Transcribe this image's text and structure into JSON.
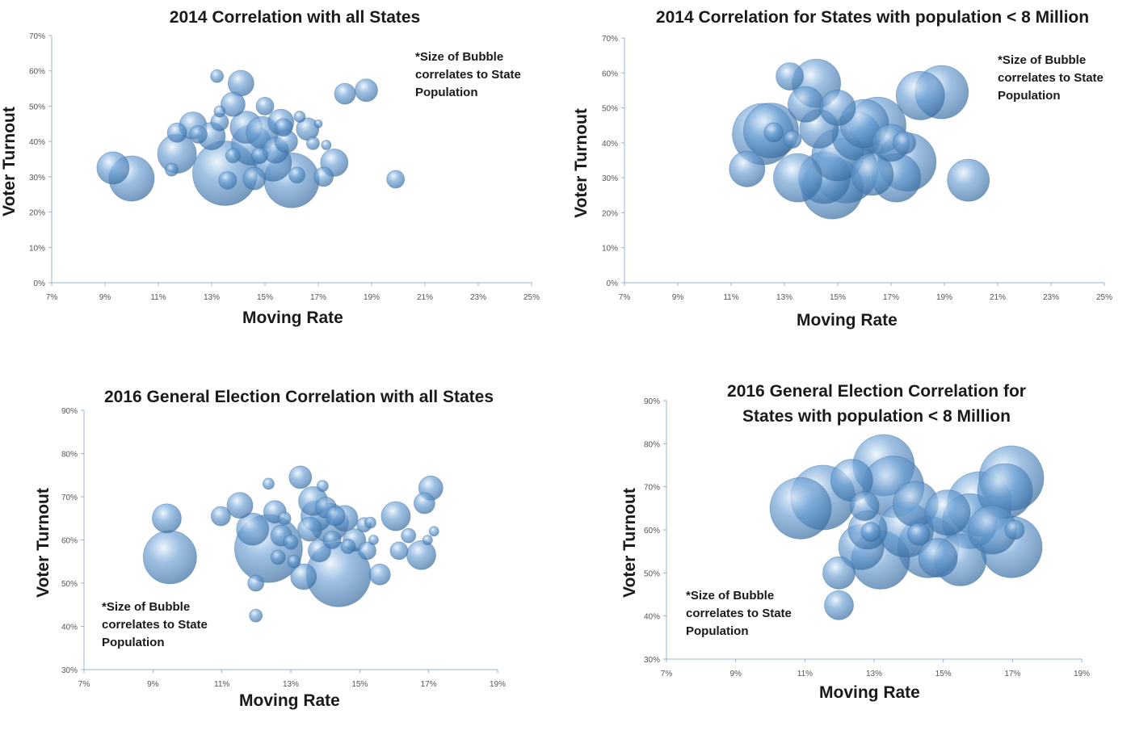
{
  "note_text": "*Size of Bubble correlates to State Population",
  "colors": {
    "bubble": "#6a9fd4",
    "bubble_edge": "#3f73a8",
    "axis": "#9ab3cc"
  },
  "chart_data": [
    {
      "type": "scatter",
      "title": "2014 Correlation with all States",
      "xlabel": "Moving Rate",
      "ylabel": "Voter Turnout",
      "xlim": [
        0.07,
        0.25
      ],
      "ylim": [
        0,
        0.7
      ],
      "xticks": [
        "7%",
        "9%",
        "11%",
        "13%",
        "15%",
        "17%",
        "19%",
        "21%",
        "23%",
        "25%"
      ],
      "yticks": [
        "0%",
        "10%",
        "20%",
        "30%",
        "40%",
        "50%",
        "60%",
        "70%"
      ],
      "grid": false,
      "note": "*Size of Bubble correlates to State Population",
      "points": [
        {
          "x": 0.093,
          "y": 0.325,
          "r": 20
        },
        {
          "x": 0.1,
          "y": 0.295,
          "r": 28
        },
        {
          "x": 0.115,
          "y": 0.32,
          "r": 8
        },
        {
          "x": 0.117,
          "y": 0.425,
          "r": 12
        },
        {
          "x": 0.117,
          "y": 0.365,
          "r": 24
        },
        {
          "x": 0.123,
          "y": 0.445,
          "r": 17
        },
        {
          "x": 0.125,
          "y": 0.42,
          "r": 11
        },
        {
          "x": 0.13,
          "y": 0.415,
          "r": 17
        },
        {
          "x": 0.132,
          "y": 0.585,
          "r": 8
        },
        {
          "x": 0.133,
          "y": 0.485,
          "r": 7
        },
        {
          "x": 0.133,
          "y": 0.455,
          "r": 11
        },
        {
          "x": 0.135,
          "y": 0.31,
          "r": 40
        },
        {
          "x": 0.136,
          "y": 0.29,
          "r": 11
        },
        {
          "x": 0.138,
          "y": 0.36,
          "r": 9
        },
        {
          "x": 0.138,
          "y": 0.505,
          "r": 15
        },
        {
          "x": 0.141,
          "y": 0.565,
          "r": 16
        },
        {
          "x": 0.143,
          "y": 0.44,
          "r": 20
        },
        {
          "x": 0.145,
          "y": 0.39,
          "r": 25
        },
        {
          "x": 0.146,
          "y": 0.295,
          "r": 14
        },
        {
          "x": 0.148,
          "y": 0.36,
          "r": 10
        },
        {
          "x": 0.149,
          "y": 0.425,
          "r": 20
        },
        {
          "x": 0.15,
          "y": 0.5,
          "r": 11
        },
        {
          "x": 0.153,
          "y": 0.34,
          "r": 23
        },
        {
          "x": 0.154,
          "y": 0.375,
          "r": 16
        },
        {
          "x": 0.156,
          "y": 0.455,
          "r": 16
        },
        {
          "x": 0.157,
          "y": 0.44,
          "r": 11
        },
        {
          "x": 0.158,
          "y": 0.4,
          "r": 14
        },
        {
          "x": 0.16,
          "y": 0.29,
          "r": 34
        },
        {
          "x": 0.162,
          "y": 0.305,
          "r": 10
        },
        {
          "x": 0.163,
          "y": 0.47,
          "r": 7
        },
        {
          "x": 0.166,
          "y": 0.435,
          "r": 14
        },
        {
          "x": 0.168,
          "y": 0.395,
          "r": 8
        },
        {
          "x": 0.17,
          "y": 0.45,
          "r": 5
        },
        {
          "x": 0.172,
          "y": 0.3,
          "r": 12
        },
        {
          "x": 0.173,
          "y": 0.39,
          "r": 6
        },
        {
          "x": 0.176,
          "y": 0.34,
          "r": 17
        },
        {
          "x": 0.18,
          "y": 0.535,
          "r": 13
        },
        {
          "x": 0.188,
          "y": 0.545,
          "r": 14
        },
        {
          "x": 0.199,
          "y": 0.293,
          "r": 11
        }
      ]
    },
    {
      "type": "scatter",
      "title": "2014 Correlation for States with population < 8 Million",
      "xlabel": "Moving Rate",
      "ylabel": "Voter Turnout",
      "xlim": [
        0.07,
        0.25
      ],
      "ylim": [
        0,
        0.7
      ],
      "xticks": [
        "7%",
        "9%",
        "11%",
        "13%",
        "15%",
        "17%",
        "19%",
        "21%",
        "23%",
        "25%"
      ],
      "yticks": [
        "0%",
        "10%",
        "20%",
        "30%",
        "40%",
        "50%",
        "60%",
        "70%"
      ],
      "grid": false,
      "note": "*Size of Bubble correlates to State Population",
      "points": [
        {
          "x": 0.116,
          "y": 0.325,
          "r": 22
        },
        {
          "x": 0.122,
          "y": 0.425,
          "r": 38
        },
        {
          "x": 0.125,
          "y": 0.435,
          "r": 34
        },
        {
          "x": 0.126,
          "y": 0.43,
          "r": 12
        },
        {
          "x": 0.132,
          "y": 0.59,
          "r": 17
        },
        {
          "x": 0.133,
          "y": 0.41,
          "r": 11
        },
        {
          "x": 0.135,
          "y": 0.3,
          "r": 30
        },
        {
          "x": 0.138,
          "y": 0.51,
          "r": 22
        },
        {
          "x": 0.142,
          "y": 0.57,
          "r": 30
        },
        {
          "x": 0.143,
          "y": 0.44,
          "r": 24
        },
        {
          "x": 0.145,
          "y": 0.3,
          "r": 32
        },
        {
          "x": 0.148,
          "y": 0.27,
          "r": 38
        },
        {
          "x": 0.15,
          "y": 0.365,
          "r": 32
        },
        {
          "x": 0.15,
          "y": 0.5,
          "r": 22
        },
        {
          "x": 0.153,
          "y": 0.32,
          "r": 40
        },
        {
          "x": 0.157,
          "y": 0.42,
          "r": 30
        },
        {
          "x": 0.16,
          "y": 0.455,
          "r": 30
        },
        {
          "x": 0.163,
          "y": 0.31,
          "r": 26
        },
        {
          "x": 0.165,
          "y": 0.45,
          "r": 35
        },
        {
          "x": 0.17,
          "y": 0.4,
          "r": 23
        },
        {
          "x": 0.172,
          "y": 0.3,
          "r": 30
        },
        {
          "x": 0.175,
          "y": 0.4,
          "r": 14
        },
        {
          "x": 0.176,
          "y": 0.345,
          "r": 36
        },
        {
          "x": 0.181,
          "y": 0.535,
          "r": 30
        },
        {
          "x": 0.189,
          "y": 0.545,
          "r": 33
        },
        {
          "x": 0.199,
          "y": 0.293,
          "r": 26
        }
      ]
    },
    {
      "type": "scatter",
      "title": "2016 General Election Correlation with all States",
      "xlabel": "Moving Rate",
      "ylabel": "Voter Turnout",
      "xlim": [
        0.07,
        0.2
      ],
      "ylim": [
        0.3,
        0.9
      ],
      "xticks": [
        "7%",
        "9%",
        "11%",
        "13%",
        "15%",
        "17%",
        "19%"
      ],
      "yticks": [
        "30%",
        "40%",
        "50%",
        "60%",
        "70%",
        "80%",
        "90%"
      ],
      "grid": false,
      "note": "*Size of Bubble correlates to State Population",
      "points": [
        {
          "x": 0.096,
          "y": 0.65,
          "r": 18
        },
        {
          "x": 0.097,
          "y": 0.56,
          "r": 33
        },
        {
          "x": 0.113,
          "y": 0.655,
          "r": 12
        },
        {
          "x": 0.119,
          "y": 0.68,
          "r": 16
        },
        {
          "x": 0.123,
          "y": 0.625,
          "r": 20
        },
        {
          "x": 0.124,
          "y": 0.5,
          "r": 10
        },
        {
          "x": 0.124,
          "y": 0.425,
          "r": 8
        },
        {
          "x": 0.128,
          "y": 0.73,
          "r": 7
        },
        {
          "x": 0.128,
          "y": 0.58,
          "r": 42
        },
        {
          "x": 0.13,
          "y": 0.665,
          "r": 14
        },
        {
          "x": 0.131,
          "y": 0.56,
          "r": 9
        },
        {
          "x": 0.132,
          "y": 0.61,
          "r": 13
        },
        {
          "x": 0.133,
          "y": 0.65,
          "r": 8
        },
        {
          "x": 0.135,
          "y": 0.595,
          "r": 9
        },
        {
          "x": 0.136,
          "y": 0.55,
          "r": 8
        },
        {
          "x": 0.138,
          "y": 0.745,
          "r": 14
        },
        {
          "x": 0.139,
          "y": 0.515,
          "r": 16
        },
        {
          "x": 0.141,
          "y": 0.625,
          "r": 15
        },
        {
          "x": 0.142,
          "y": 0.69,
          "r": 18
        },
        {
          "x": 0.143,
          "y": 0.655,
          "r": 19
        },
        {
          "x": 0.144,
          "y": 0.575,
          "r": 14
        },
        {
          "x": 0.145,
          "y": 0.725,
          "r": 7
        },
        {
          "x": 0.146,
          "y": 0.675,
          "r": 13
        },
        {
          "x": 0.147,
          "y": 0.64,
          "r": 24
        },
        {
          "x": 0.148,
          "y": 0.6,
          "r": 11
        },
        {
          "x": 0.149,
          "y": 0.655,
          "r": 12
        },
        {
          "x": 0.15,
          "y": 0.52,
          "r": 40
        },
        {
          "x": 0.152,
          "y": 0.65,
          "r": 16
        },
        {
          "x": 0.153,
          "y": 0.585,
          "r": 9
        },
        {
          "x": 0.155,
          "y": 0.6,
          "r": 14
        },
        {
          "x": 0.158,
          "y": 0.635,
          "r": 9
        },
        {
          "x": 0.159,
          "y": 0.575,
          "r": 11
        },
        {
          "x": 0.16,
          "y": 0.64,
          "r": 7
        },
        {
          "x": 0.161,
          "y": 0.6,
          "r": 6
        },
        {
          "x": 0.163,
          "y": 0.52,
          "r": 13
        },
        {
          "x": 0.168,
          "y": 0.655,
          "r": 18
        },
        {
          "x": 0.169,
          "y": 0.575,
          "r": 11
        },
        {
          "x": 0.172,
          "y": 0.61,
          "r": 9
        },
        {
          "x": 0.176,
          "y": 0.565,
          "r": 18
        },
        {
          "x": 0.177,
          "y": 0.685,
          "r": 13
        },
        {
          "x": 0.178,
          "y": 0.6,
          "r": 6
        },
        {
          "x": 0.179,
          "y": 0.72,
          "r": 15
        },
        {
          "x": 0.18,
          "y": 0.62,
          "r": 6
        }
      ]
    },
    {
      "type": "scatter",
      "title": "2016 General Election Correlation for States with population < 8 Million",
      "xlabel": "Moving Rate",
      "ylabel": "Voter Turnout",
      "xlim": [
        0.07,
        0.2
      ],
      "ylim": [
        0.3,
        0.9
      ],
      "xticks": [
        "7%",
        "9%",
        "11%",
        "13%",
        "15%",
        "17%",
        "19%"
      ],
      "yticks": [
        "30%",
        "40%",
        "50%",
        "60%",
        "70%",
        "80%",
        "90%"
      ],
      "grid": false,
      "note": "*Size of Bubble correlates to State Population",
      "points": [
        {
          "x": 0.112,
          "y": 0.65,
          "r": 38
        },
        {
          "x": 0.119,
          "y": 0.675,
          "r": 40
        },
        {
          "x": 0.124,
          "y": 0.5,
          "r": 20
        },
        {
          "x": 0.124,
          "y": 0.425,
          "r": 18
        },
        {
          "x": 0.128,
          "y": 0.715,
          "r": 26
        },
        {
          "x": 0.131,
          "y": 0.56,
          "r": 28
        },
        {
          "x": 0.132,
          "y": 0.655,
          "r": 18
        },
        {
          "x": 0.133,
          "y": 0.6,
          "r": 24
        },
        {
          "x": 0.134,
          "y": 0.595,
          "r": 12
        },
        {
          "x": 0.137,
          "y": 0.53,
          "r": 36
        },
        {
          "x": 0.138,
          "y": 0.75,
          "r": 38
        },
        {
          "x": 0.141,
          "y": 0.7,
          "r": 38
        },
        {
          "x": 0.145,
          "y": 0.6,
          "r": 34
        },
        {
          "x": 0.148,
          "y": 0.66,
          "r": 28
        },
        {
          "x": 0.149,
          "y": 0.59,
          "r": 14
        },
        {
          "x": 0.152,
          "y": 0.56,
          "r": 38
        },
        {
          "x": 0.155,
          "y": 0.535,
          "r": 24
        },
        {
          "x": 0.158,
          "y": 0.64,
          "r": 28
        },
        {
          "x": 0.162,
          "y": 0.53,
          "r": 32
        },
        {
          "x": 0.165,
          "y": 0.62,
          "r": 34
        },
        {
          "x": 0.168,
          "y": 0.66,
          "r": 40
        },
        {
          "x": 0.172,
          "y": 0.6,
          "r": 30
        },
        {
          "x": 0.176,
          "y": 0.69,
          "r": 34
        },
        {
          "x": 0.178,
          "y": 0.72,
          "r": 40
        },
        {
          "x": 0.178,
          "y": 0.56,
          "r": 38
        },
        {
          "x": 0.179,
          "y": 0.6,
          "r": 12
        }
      ]
    }
  ]
}
